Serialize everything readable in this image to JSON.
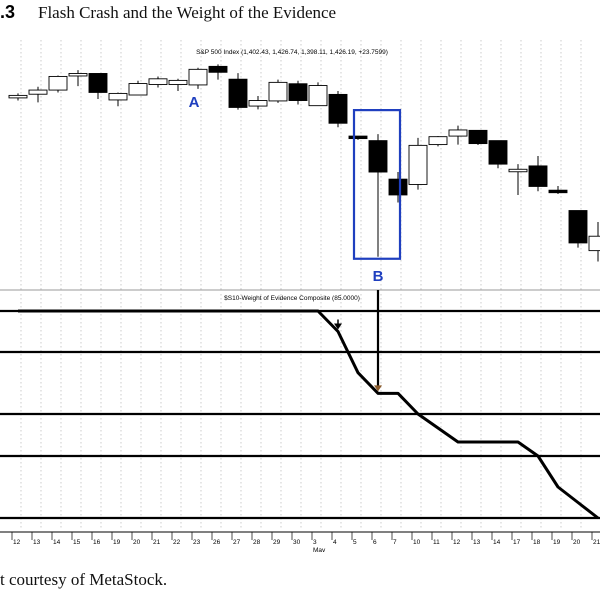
{
  "figure": {
    "number": ".3",
    "title": "Flash Crash and the Weight of the Evidence",
    "caption": "t courtesy of MetaStock."
  },
  "chart_data": [
    {
      "type": "candlestick",
      "legend": "S&P 500 Index (1,402.43, 1,426.74, 1,398.11, 1,426.19, +23.7599)",
      "annotations": [
        {
          "label": "A",
          "date_index": 8
        },
        {
          "label": "B",
          "date_index": 17,
          "highlight": "box"
        }
      ],
      "annotation_color": "#1f3fbf",
      "dates": [
        "12",
        "13",
        "14",
        "15",
        "16",
        "19",
        "20",
        "21",
        "22",
        "23",
        "26",
        "27",
        "28",
        "29",
        "30",
        "3",
        "4",
        "5",
        "6",
        "7",
        "10",
        "11",
        "12",
        "13",
        "14",
        "17",
        "18",
        "19",
        "20",
        "21"
      ],
      "month_label": {
        "text": "May",
        "date_index": 15
      },
      "candles": [
        {
          "o": 1196.0,
          "h": 1197.0,
          "l": 1193.4,
          "c": 1196.0,
          "color": "white"
        },
        {
          "o": 1196.6,
          "h": 1200.4,
          "l": 1192.5,
          "c": 1198.7,
          "color": "white"
        },
        {
          "o": 1198.7,
          "h": 1206.1,
          "l": 1197.5,
          "c": 1205.6,
          "color": "white"
        },
        {
          "o": 1207.1,
          "h": 1208.8,
          "l": 1200.7,
          "c": 1206.7,
          "color": "white"
        },
        {
          "o": 1207.1,
          "h": 1207.1,
          "l": 1194.2,
          "c": 1197.5,
          "color": "black"
        },
        {
          "o": 1193.7,
          "h": 1197.5,
          "l": 1190.5,
          "c": 1197.0,
          "color": "white"
        },
        {
          "o": 1196.2,
          "h": 1203.4,
          "l": 1196.2,
          "c": 1202.0,
          "color": "white"
        },
        {
          "o": 1201.5,
          "h": 1205.6,
          "l": 1200.0,
          "c": 1204.4,
          "color": "white"
        },
        {
          "o": 1203.6,
          "h": 1204.4,
          "l": 1198.2,
          "c": 1201.5,
          "color": "white"
        },
        {
          "o": 1201.3,
          "h": 1210.0,
          "l": 1199.3,
          "c": 1209.2,
          "color": "white"
        },
        {
          "o": 1210.7,
          "h": 1211.7,
          "l": 1204.0,
          "c": 1207.7,
          "color": "black"
        },
        {
          "o": 1204.2,
          "h": 1207.3,
          "l": 1188.8,
          "c": 1189.9,
          "color": "black"
        },
        {
          "o": 1190.6,
          "h": 1195.7,
          "l": 1188.9,
          "c": 1193.4,
          "color": "white"
        },
        {
          "o": 1193.2,
          "h": 1204.0,
          "l": 1192.2,
          "c": 1202.6,
          "color": "white"
        },
        {
          "o": 1201.9,
          "h": 1203.4,
          "l": 1191.4,
          "c": 1193.4,
          "color": "black"
        },
        {
          "o": 1190.8,
          "h": 1202.6,
          "l": 1190.8,
          "c": 1201.0,
          "color": "white"
        },
        {
          "o": 1196.5,
          "h": 1198.2,
          "l": 1179.9,
          "c": 1181.9,
          "color": "black"
        },
        {
          "o": 1175.4,
          "h": 1175.4,
          "l": 1173.5,
          "c": 1174.5,
          "color": "black"
        },
        {
          "o": 1173.1,
          "h": 1176.4,
          "l": 1114.3,
          "c": 1157.2,
          "color": "black"
        },
        {
          "o": 1153.6,
          "h": 1157.2,
          "l": 1141.8,
          "c": 1145.6,
          "color": "black"
        },
        {
          "o": 1150.9,
          "h": 1174.5,
          "l": 1148.3,
          "c": 1170.7,
          "color": "white"
        },
        {
          "o": 1171.1,
          "h": 1175.4,
          "l": 1170.2,
          "c": 1175.1,
          "color": "white"
        },
        {
          "o": 1175.4,
          "h": 1180.7,
          "l": 1171.1,
          "c": 1178.5,
          "color": "white"
        },
        {
          "o": 1178.3,
          "h": 1178.5,
          "l": 1170.9,
          "c": 1171.6,
          "color": "black"
        },
        {
          "o": 1173.1,
          "h": 1173.1,
          "l": 1159.1,
          "c": 1161.2,
          "color": "black"
        },
        {
          "o": 1158.1,
          "h": 1161.2,
          "l": 1145.6,
          "c": 1158.6,
          "color": "white"
        },
        {
          "o": 1160.3,
          "h": 1165.3,
          "l": 1147.5,
          "c": 1149.9,
          "color": "black"
        },
        {
          "o": 1148.0,
          "h": 1150.1,
          "l": 1146.1,
          "c": 1148.0,
          "color": "black"
        },
        {
          "o": 1137.7,
          "h": 1137.7,
          "l": 1118.9,
          "c": 1121.3,
          "color": "black"
        },
        {
          "o": 1124.7,
          "h": 1131.9,
          "l": 1111.9,
          "c": 1117.4,
          "color": "white"
        }
      ],
      "y_range": [
        1100,
        1220
      ],
      "grid": "dotted vertical"
    },
    {
      "type": "line",
      "legend": "$S10-Weight of Evidence Composite (85.0000)",
      "x": [
        "12",
        "13",
        "14",
        "15",
        "16",
        "19",
        "20",
        "21",
        "22",
        "23",
        "26",
        "27",
        "28",
        "29",
        "30",
        "3",
        "4",
        "5",
        "6",
        "7",
        "10",
        "11",
        "12",
        "13",
        "14",
        "17",
        "18",
        "19",
        "20",
        "21"
      ],
      "y": [
        100,
        100,
        100,
        100,
        100,
        100,
        100,
        100,
        100,
        100,
        100,
        100,
        100,
        100,
        100,
        100,
        95,
        85,
        80,
        80,
        75,
        70,
        65,
        65,
        65,
        65,
        60,
        50,
        45,
        40
      ],
      "y_range": [
        40,
        100
      ],
      "levels": [
        100,
        90,
        75,
        60,
        40
      ],
      "arrows": [
        16,
        18
      ],
      "grid": "dotted vertical"
    }
  ]
}
